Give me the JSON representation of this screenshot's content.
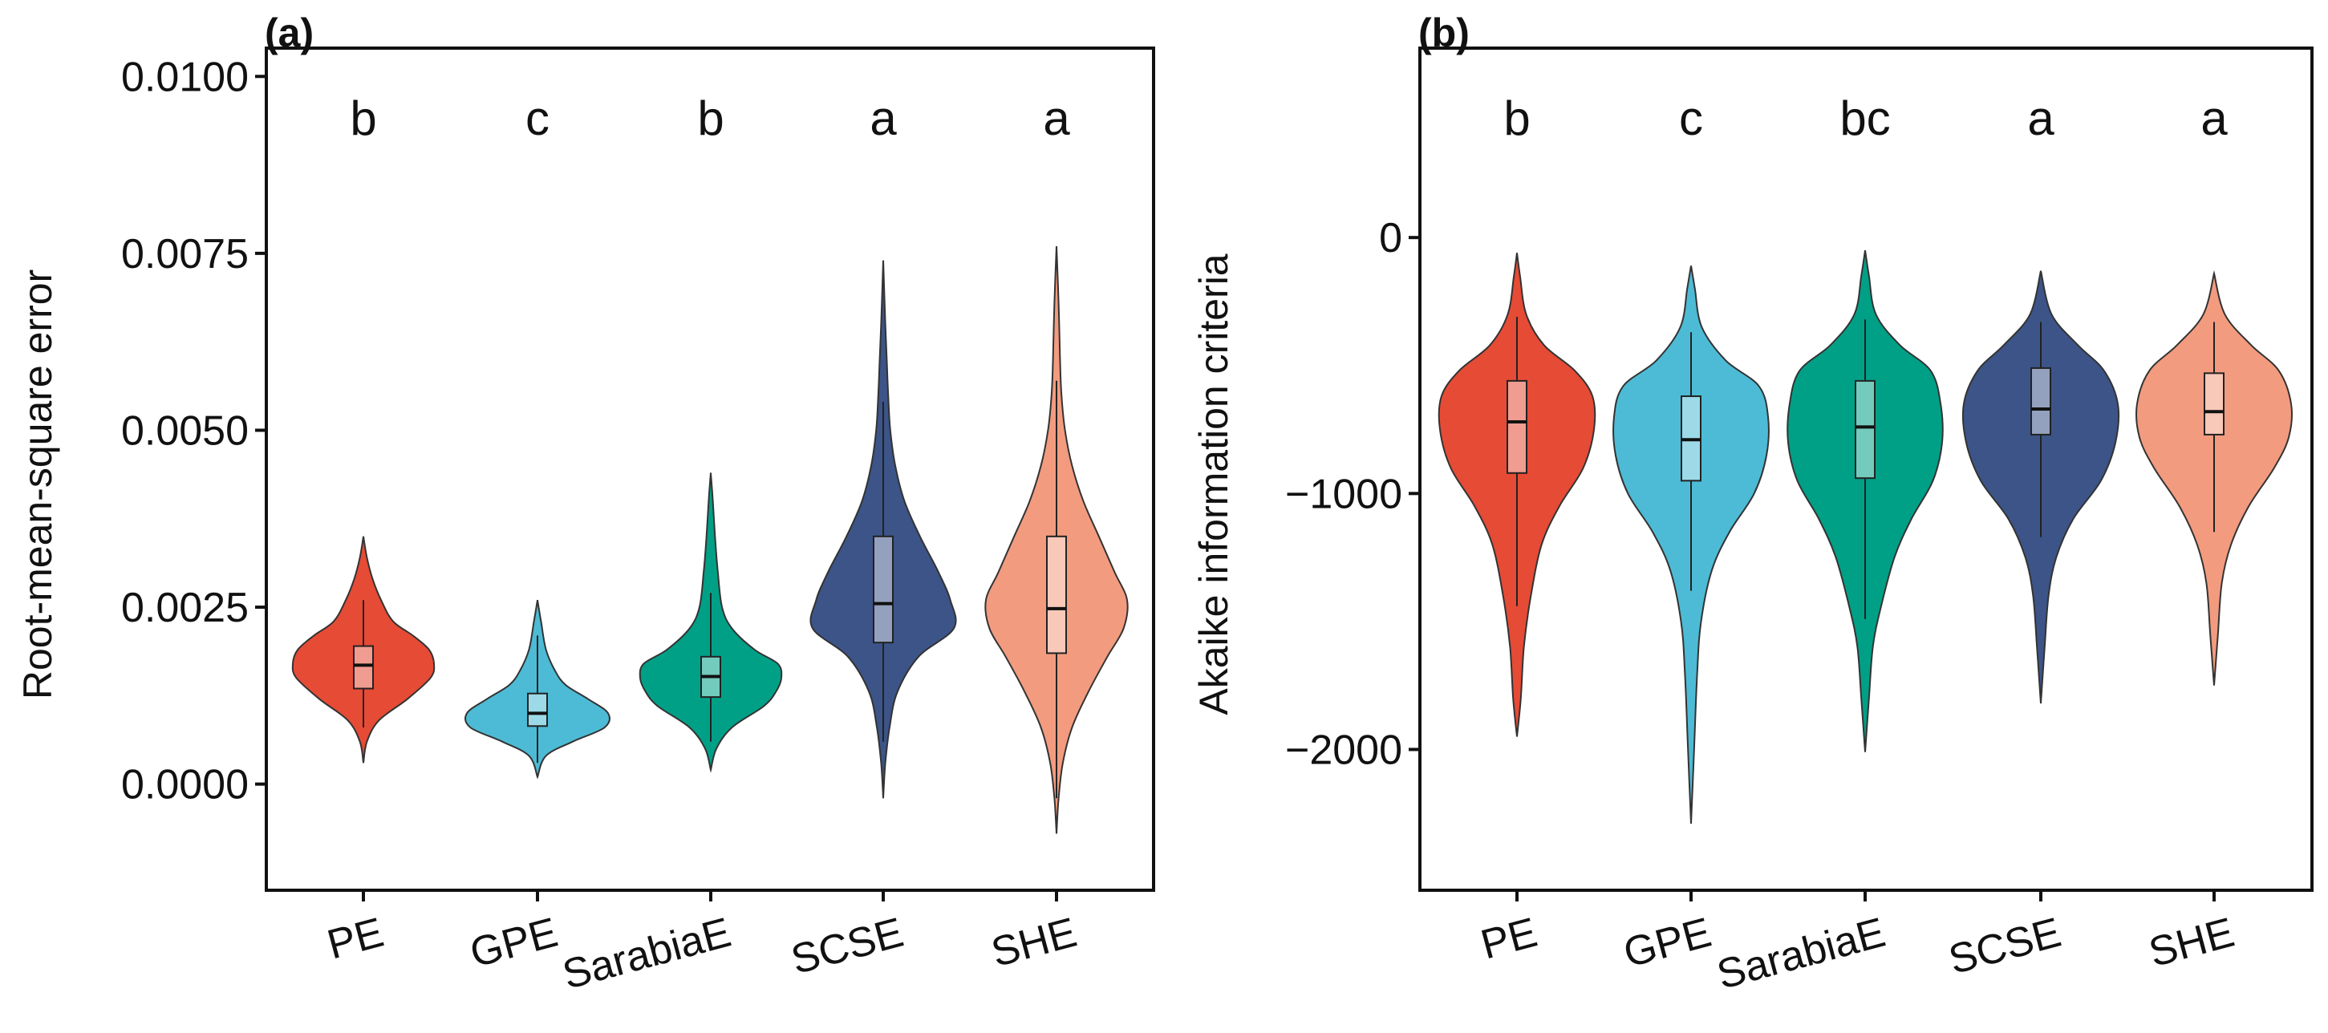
{
  "chart_data": [
    {
      "type": "violin",
      "panel_label": "(a)",
      "ylabel": "Root-mean-square error",
      "xlabel": "",
      "ylim": [
        -0.0015,
        0.0104
      ],
      "yticks": [
        0.0,
        0.0025,
        0.005,
        0.0075,
        0.01
      ],
      "ytick_labels": [
        "0.0000",
        "0.0025",
        "0.0050",
        "0.0075",
        "0.0100"
      ],
      "grid": false,
      "categories": [
        "PE",
        "GPE",
        "SarabiaE",
        "SCSE",
        "SHE"
      ],
      "series": [
        {
          "name": "PE",
          "color": "#E64B35",
          "min": 0.0003,
          "max": 0.0035,
          "q1": 0.00135,
          "median": 0.00168,
          "q3": 0.00195,
          "whisker_low": 0.0008,
          "whisker_high": 0.0026,
          "letter": "b",
          "profile": [
            [
              0.0003,
              0.0
            ],
            [
              0.0006,
              0.05
            ],
            [
              0.0009,
              0.22
            ],
            [
              0.0012,
              0.62
            ],
            [
              0.0015,
              0.95
            ],
            [
              0.0017,
              1.0
            ],
            [
              0.0019,
              0.93
            ],
            [
              0.0021,
              0.7
            ],
            [
              0.0023,
              0.42
            ],
            [
              0.0026,
              0.25
            ],
            [
              0.0029,
              0.13
            ],
            [
              0.0032,
              0.05
            ],
            [
              0.0035,
              0.0
            ]
          ]
        },
        {
          "name": "GPE",
          "color": "#4DBBD5",
          "min": 0.0001,
          "max": 0.0026,
          "q1": 0.00082,
          "median": 0.001,
          "q3": 0.00128,
          "whisker_low": 0.0003,
          "whisker_high": 0.0021,
          "letter": "c",
          "profile": [
            [
              0.0001,
              0.0
            ],
            [
              0.0004,
              0.12
            ],
            [
              0.0006,
              0.5
            ],
            [
              0.0008,
              0.95
            ],
            [
              0.001,
              1.0
            ],
            [
              0.0012,
              0.72
            ],
            [
              0.0014,
              0.4
            ],
            [
              0.0016,
              0.25
            ],
            [
              0.0019,
              0.12
            ],
            [
              0.0023,
              0.05
            ],
            [
              0.0026,
              0.0
            ]
          ]
        },
        {
          "name": "SarabiaE",
          "color": "#00A087",
          "min": 0.0002,
          "max": 0.0044,
          "q1": 0.00123,
          "median": 0.00152,
          "q3": 0.0018,
          "whisker_low": 0.0006,
          "whisker_high": 0.0027,
          "letter": "b",
          "profile": [
            [
              0.0002,
              0.0
            ],
            [
              0.0005,
              0.08
            ],
            [
              0.0008,
              0.3
            ],
            [
              0.0011,
              0.75
            ],
            [
              0.0013,
              0.92
            ],
            [
              0.0015,
              1.0
            ],
            [
              0.0017,
              0.95
            ],
            [
              0.0019,
              0.62
            ],
            [
              0.0022,
              0.3
            ],
            [
              0.0025,
              0.16
            ],
            [
              0.003,
              0.1
            ],
            [
              0.0035,
              0.06
            ],
            [
              0.004,
              0.03
            ],
            [
              0.0044,
              0.0
            ]
          ]
        },
        {
          "name": "SCSE",
          "color": "#3C5488",
          "min": -0.0002,
          "max": 0.0074,
          "q1": 0.002,
          "median": 0.00255,
          "q3": 0.0035,
          "whisker_low": 0.0006,
          "whisker_high": 0.0054,
          "letter": "a",
          "profile": [
            [
              -0.0002,
              0.0
            ],
            [
              0.0003,
              0.03
            ],
            [
              0.0008,
              0.09
            ],
            [
              0.0013,
              0.2
            ],
            [
              0.0018,
              0.5
            ],
            [
              0.0022,
              1.0
            ],
            [
              0.0026,
              0.95
            ],
            [
              0.003,
              0.78
            ],
            [
              0.0035,
              0.52
            ],
            [
              0.004,
              0.3
            ],
            [
              0.0045,
              0.17
            ],
            [
              0.005,
              0.1
            ],
            [
              0.0055,
              0.07
            ],
            [
              0.006,
              0.05
            ],
            [
              0.0065,
              0.03
            ],
            [
              0.0074,
              0.0
            ]
          ]
        },
        {
          "name": "SHE",
          "color": "#F39B7F",
          "min": -0.0007,
          "max": 0.0076,
          "q1": 0.00185,
          "median": 0.00248,
          "q3": 0.0035,
          "whisker_low": -0.0002,
          "whisker_high": 0.0057,
          "letter": "a",
          "profile": [
            [
              -0.0007,
              0.0
            ],
            [
              -0.0002,
              0.03
            ],
            [
              0.0003,
              0.09
            ],
            [
              0.0008,
              0.22
            ],
            [
              0.0013,
              0.45
            ],
            [
              0.0018,
              0.72
            ],
            [
              0.0022,
              0.95
            ],
            [
              0.0026,
              1.0
            ],
            [
              0.003,
              0.82
            ],
            [
              0.0035,
              0.6
            ],
            [
              0.004,
              0.38
            ],
            [
              0.0045,
              0.22
            ],
            [
              0.005,
              0.12
            ],
            [
              0.0055,
              0.07
            ],
            [
              0.006,
              0.05
            ],
            [
              0.0068,
              0.03
            ],
            [
              0.0076,
              0.0
            ]
          ]
        }
      ]
    },
    {
      "type": "violin",
      "panel_label": "(b)",
      "ylabel": "Akaike information criteria",
      "xlabel": "",
      "ylim": [
        -2550,
        740
      ],
      "yticks": [
        -2000,
        -1000,
        0
      ],
      "ytick_labels": [
        "−2000",
        "−1000",
        "0"
      ],
      "grid": false,
      "categories": [
        "PE",
        "GPE",
        "SarabiaE",
        "SCSE",
        "SHE"
      ],
      "series": [
        {
          "name": "PE",
          "color": "#E64B35",
          "min": -1950,
          "max": -60,
          "q1": -920,
          "median": -720,
          "q3": -560,
          "whisker_low": -1440,
          "whisker_high": -310,
          "letter": "b",
          "profile": [
            [
              -1950,
              0.0
            ],
            [
              -1800,
              0.05
            ],
            [
              -1600,
              0.09
            ],
            [
              -1400,
              0.18
            ],
            [
              -1200,
              0.32
            ],
            [
              -1050,
              0.55
            ],
            [
              -900,
              0.86
            ],
            [
              -750,
              1.0
            ],
            [
              -620,
              0.98
            ],
            [
              -520,
              0.75
            ],
            [
              -420,
              0.35
            ],
            [
              -300,
              0.12
            ],
            [
              -150,
              0.04
            ],
            [
              -60,
              0.0
            ]
          ]
        },
        {
          "name": "GPE",
          "color": "#4DBBD5",
          "min": -2290,
          "max": -110,
          "q1": -950,
          "median": -790,
          "q3": -620,
          "whisker_low": -1380,
          "whisker_high": -370,
          "letter": "c",
          "profile": [
            [
              -2290,
              0.0
            ],
            [
              -2000,
              0.04
            ],
            [
              -1700,
              0.08
            ],
            [
              -1500,
              0.13
            ],
            [
              -1300,
              0.27
            ],
            [
              -1150,
              0.5
            ],
            [
              -1000,
              0.82
            ],
            [
              -850,
              0.98
            ],
            [
              -700,
              1.0
            ],
            [
              -580,
              0.88
            ],
            [
              -480,
              0.45
            ],
            [
              -350,
              0.14
            ],
            [
              -200,
              0.05
            ],
            [
              -110,
              0.0
            ]
          ]
        },
        {
          "name": "SarabiaE",
          "color": "#00A087",
          "min": -2010,
          "max": -50,
          "q1": -940,
          "median": -740,
          "q3": -560,
          "whisker_low": -1490,
          "whisker_high": -320,
          "letter": "bc",
          "profile": [
            [
              -2010,
              0.0
            ],
            [
              -1800,
              0.05
            ],
            [
              -1600,
              0.1
            ],
            [
              -1450,
              0.2
            ],
            [
              -1250,
              0.38
            ],
            [
              -1100,
              0.6
            ],
            [
              -950,
              0.88
            ],
            [
              -800,
              1.0
            ],
            [
              -650,
              0.98
            ],
            [
              -520,
              0.85
            ],
            [
              -420,
              0.45
            ],
            [
              -300,
              0.14
            ],
            [
              -150,
              0.05
            ],
            [
              -50,
              0.0
            ]
          ]
        },
        {
          "name": "SCSE",
          "color": "#3C5488",
          "min": -1820,
          "max": -130,
          "q1": -770,
          "median": -670,
          "q3": -510,
          "whisker_low": -1170,
          "whisker_high": -330,
          "letter": "a",
          "profile": [
            [
              -1820,
              0.0
            ],
            [
              -1600,
              0.05
            ],
            [
              -1400,
              0.1
            ],
            [
              -1250,
              0.2
            ],
            [
              -1100,
              0.42
            ],
            [
              -950,
              0.78
            ],
            [
              -800,
              0.97
            ],
            [
              -650,
              1.0
            ],
            [
              -520,
              0.82
            ],
            [
              -420,
              0.48
            ],
            [
              -300,
              0.14
            ],
            [
              -130,
              0.0
            ]
          ]
        },
        {
          "name": "SHE",
          "color": "#F39B7F",
          "min": -1750,
          "max": -140,
          "q1": -770,
          "median": -680,
          "q3": -530,
          "whisker_low": -1150,
          "whisker_high": -330,
          "letter": "a",
          "profile": [
            [
              -1750,
              0.0
            ],
            [
              -1550,
              0.05
            ],
            [
              -1350,
              0.1
            ],
            [
              -1200,
              0.22
            ],
            [
              -1050,
              0.45
            ],
            [
              -900,
              0.78
            ],
            [
              -780,
              0.97
            ],
            [
              -650,
              1.0
            ],
            [
              -520,
              0.84
            ],
            [
              -420,
              0.48
            ],
            [
              -300,
              0.14
            ],
            [
              -140,
              0.0
            ]
          ]
        }
      ]
    }
  ]
}
